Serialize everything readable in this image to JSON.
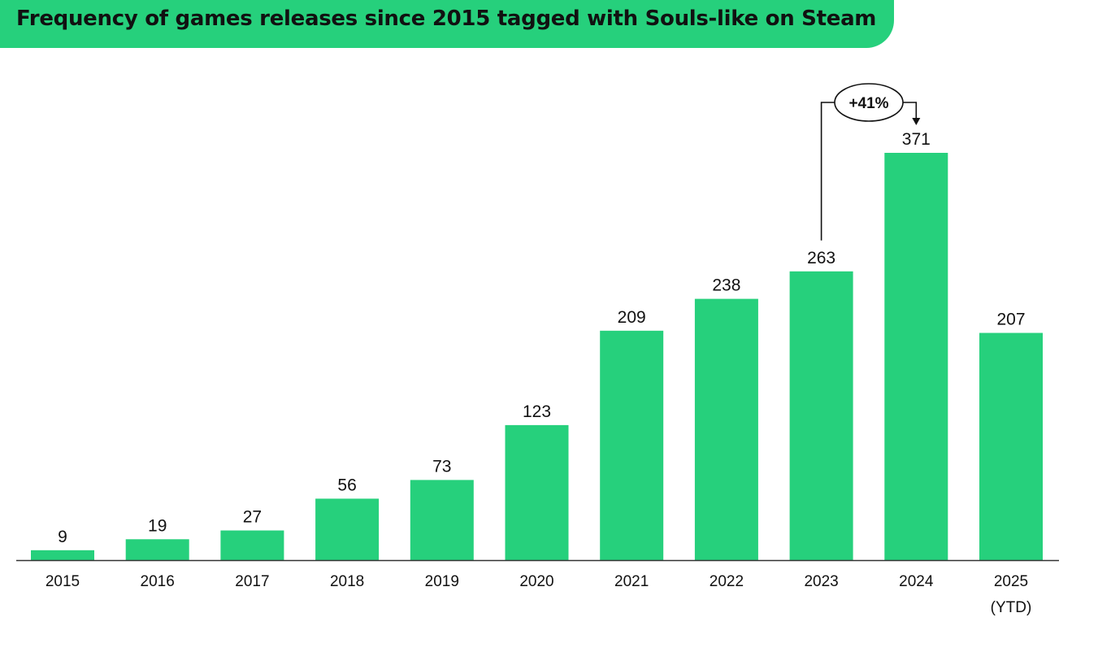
{
  "title": "Frequency of games releases since 2015 tagged with Souls-like on Steam",
  "colors": {
    "bar": "#26d07c",
    "banner": "#26d07c",
    "text": "#111111",
    "axis": "#333333"
  },
  "chart_data": {
    "type": "bar",
    "title": "Frequency of games releases since 2015 tagged with Souls-like on Steam",
    "categories": [
      "2015",
      "2016",
      "2017",
      "2018",
      "2019",
      "2020",
      "2021",
      "2022",
      "2023",
      "2024",
      "2025"
    ],
    "category_sublabels": [
      "",
      "",
      "",
      "",
      "",
      "",
      "",
      "",
      "",
      "",
      "(YTD)"
    ],
    "values": [
      9,
      19,
      27,
      56,
      73,
      123,
      209,
      238,
      263,
      371,
      207
    ],
    "xlabel": "",
    "ylabel": "",
    "ylim": [
      0,
      371
    ],
    "grid": false,
    "legend": "none",
    "annotation": {
      "label": "+41%",
      "from_category": "2023",
      "to_category": "2024"
    }
  }
}
